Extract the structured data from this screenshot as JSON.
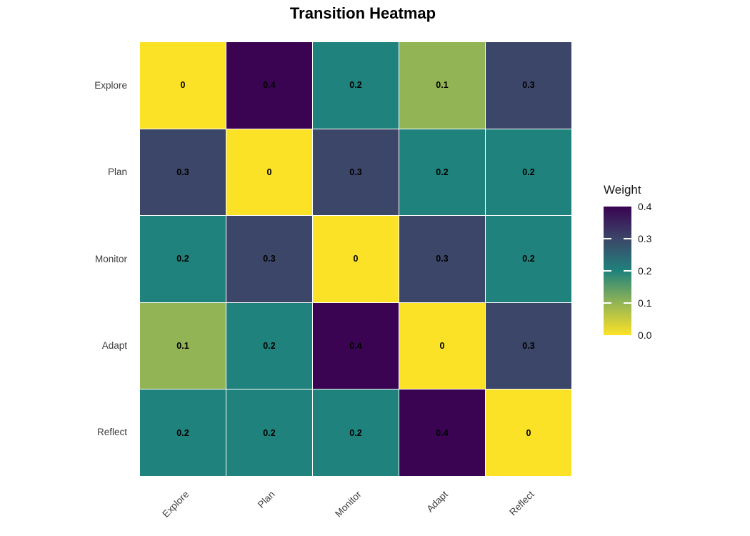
{
  "title": "Transition Heatmap",
  "legend": {
    "title": "Weight",
    "tick_labels": [
      "0.4",
      "0.3",
      "0.2",
      "0.1",
      "0.0"
    ]
  },
  "chart_data": {
    "type": "heatmap",
    "title": "Transition Heatmap",
    "x_categories": [
      "Explore",
      "Plan",
      "Monitor",
      "Adapt",
      "Reflect"
    ],
    "y_categories": [
      "Explore",
      "Plan",
      "Monitor",
      "Adapt",
      "Reflect"
    ],
    "values": [
      [
        0,
        0.4,
        0.2,
        0.1,
        0.3
      ],
      [
        0.3,
        0,
        0.3,
        0.2,
        0.2
      ],
      [
        0.2,
        0.3,
        0,
        0.3,
        0.2
      ],
      [
        0.1,
        0.2,
        0.4,
        0,
        0.3
      ],
      [
        0.2,
        0.2,
        0.2,
        0.4,
        0
      ]
    ],
    "cell_labels": [
      [
        "0",
        "0.4",
        "0.2",
        "0.1",
        "0.3"
      ],
      [
        "0.3",
        "0",
        "0.3",
        "0.2",
        "0.2"
      ],
      [
        "0.2",
        "0.3",
        "0",
        "0.3",
        "0.2"
      ],
      [
        "0.1",
        "0.2",
        "0.4",
        "0",
        "0.3"
      ],
      [
        "0.2",
        "0.2",
        "0.2",
        "0.4",
        "0"
      ]
    ],
    "legend_title": "Weight",
    "legend_ticks": [
      0.4,
      0.3,
      0.2,
      0.1,
      0.0
    ],
    "value_range": [
      0,
      0.4
    ],
    "colorscale": {
      "0": "#FCE227",
      "0.1": "#93B455",
      "0.2": "#20827C",
      "0.3": "#3C4668",
      "0.4": "#3A0453"
    },
    "grid_line_color": "#FFFFFF",
    "axis_text_color": "#404040",
    "background": "#FFFFFF",
    "legend_position": "right",
    "x_label_angle": 45
  }
}
